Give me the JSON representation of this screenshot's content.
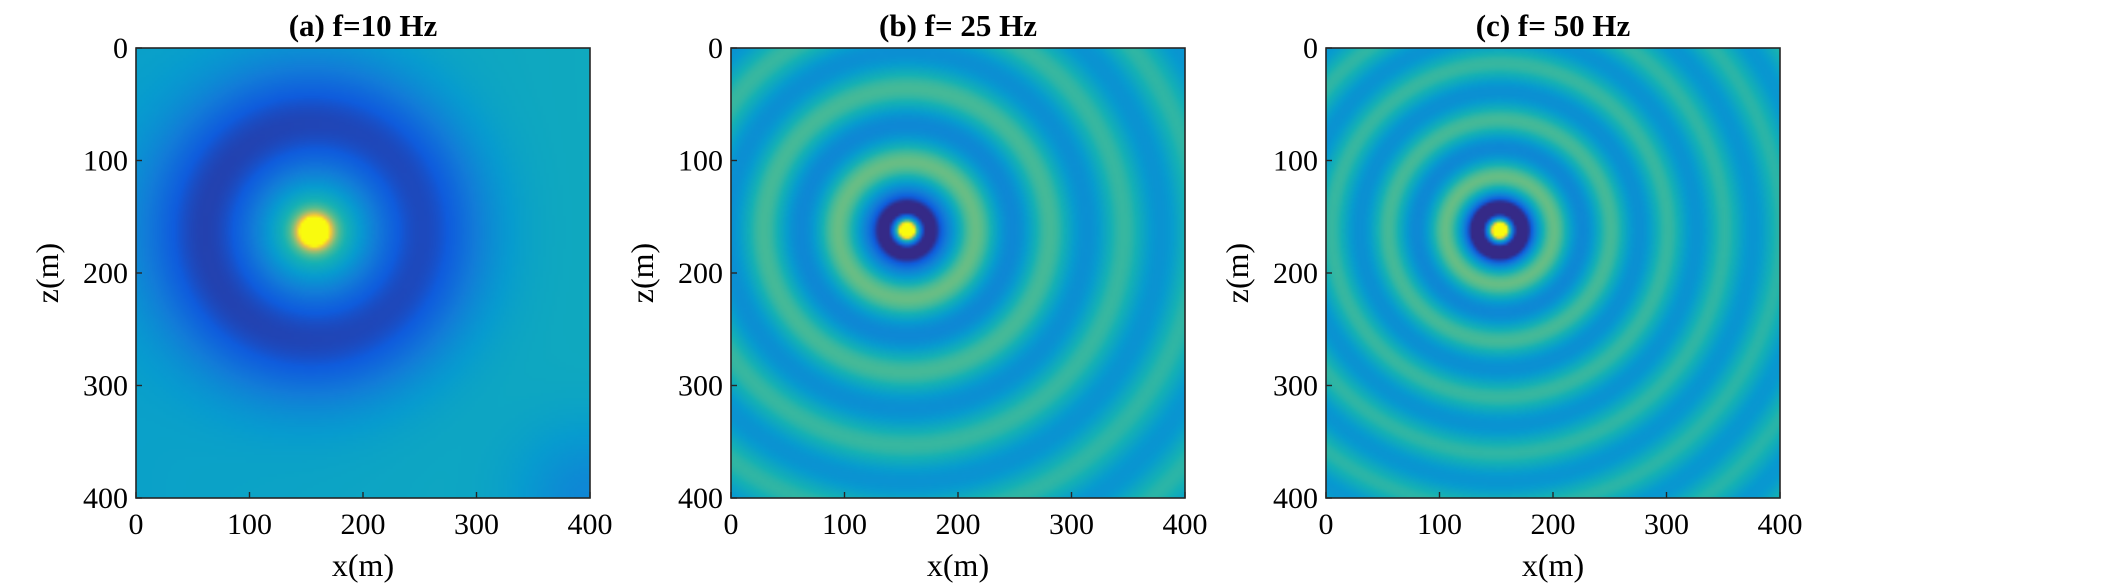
{
  "chart_data": [
    {
      "type": "heatmap",
      "title": "(a) f=10 Hz",
      "xlabel": "x(m)",
      "ylabel": "z(m)",
      "xlim": [
        0,
        400
      ],
      "ylim": [
        0,
        400
      ],
      "y_reversed": true,
      "x_ticks": [
        0,
        100,
        200,
        300,
        400
      ],
      "y_ticks": [
        0,
        100,
        200,
        300,
        400
      ],
      "source": [
        157,
        163
      ],
      "frequency_hz": 10,
      "colormap": "parula",
      "grid": false
    },
    {
      "type": "heatmap",
      "title": "(b) f= 25 Hz",
      "xlabel": "x(m)",
      "ylabel": "z(m)",
      "xlim": [
        0,
        400
      ],
      "ylim": [
        0,
        400
      ],
      "y_reversed": true,
      "x_ticks": [
        0,
        100,
        200,
        300,
        400
      ],
      "y_ticks": [
        0,
        100,
        200,
        300,
        400
      ],
      "source": [
        155,
        162
      ],
      "frequency_hz": 25,
      "colormap": "parula",
      "grid": false
    },
    {
      "type": "heatmap",
      "title": "(c) f= 50 Hz",
      "xlabel": "x(m)",
      "ylabel": "z(m)",
      "xlim": [
        0,
        400
      ],
      "ylim": [
        0,
        400
      ],
      "y_reversed": true,
      "x_ticks": [
        0,
        100,
        200,
        300,
        400
      ],
      "y_ticks": [
        0,
        100,
        200,
        300,
        400
      ],
      "source": [
        153,
        162
      ],
      "frequency_hz": 50,
      "colormap": "parula",
      "grid": false
    }
  ]
}
